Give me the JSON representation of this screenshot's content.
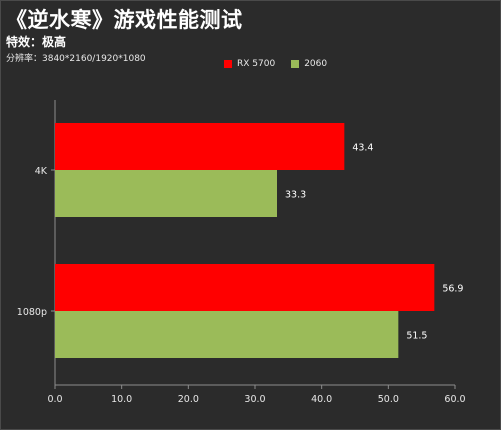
{
  "header": {
    "title": "《逆水寒》游戏性能测试",
    "subtitle": "特效：极高",
    "resolution": "分辨率：3840*2160/1920*1080"
  },
  "colors": {
    "background": "#2b2b2b",
    "axis": "#8c8c8c",
    "text": "#ffffff"
  },
  "chart_data": {
    "type": "bar",
    "orientation": "horizontal",
    "categories": [
      "4K",
      "1080p"
    ],
    "series": [
      {
        "name": "RX 5700",
        "color": "#ff0000",
        "values": [
          43.4,
          56.9
        ]
      },
      {
        "name": "2060",
        "color": "#9bbb59",
        "values": [
          33.3,
          51.5
        ]
      }
    ],
    "data_labels": true,
    "xlim": [
      0,
      60
    ],
    "xticks": [
      0,
      10,
      20,
      30,
      40,
      50,
      60
    ],
    "xtick_labels": [
      "0.0",
      "10.0",
      "20.0",
      "30.0",
      "40.0",
      "50.0",
      "60.0"
    ],
    "legend_position": "top-center",
    "grid": false
  }
}
